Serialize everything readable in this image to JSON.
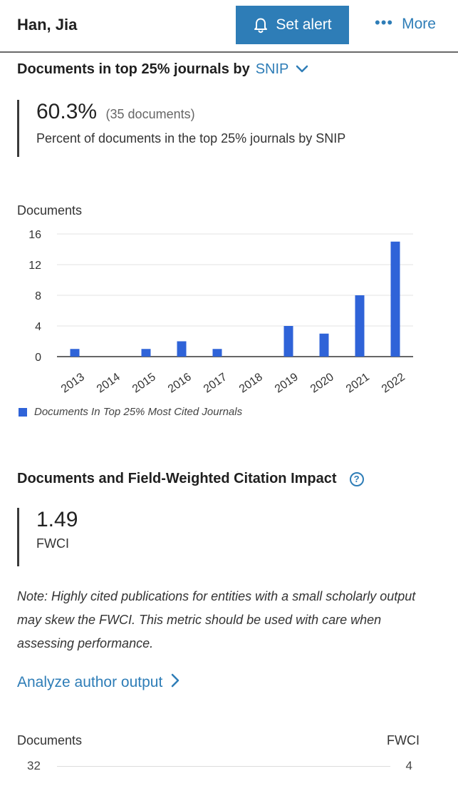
{
  "header": {
    "author_name": "Han, Jia",
    "set_alert_label": "Set alert",
    "more_label": "More"
  },
  "top_journals_section": {
    "title": "Documents in top 25% journals by",
    "selected_metric": "SNIP",
    "percent": "60.3%",
    "documents_count": "(35 documents)",
    "description": "Percent of documents in the top 25% journals by SNIP"
  },
  "chart_data": {
    "type": "bar",
    "title": "",
    "xlabel": "",
    "ylabel": "Documents",
    "categories": [
      "2013",
      "2014",
      "2015",
      "2016",
      "2017",
      "2018",
      "2019",
      "2020",
      "2021",
      "2022"
    ],
    "series": [
      {
        "name": "Documents In Top 25% Most Cited Journals",
        "values": [
          1,
          0,
          1,
          2,
          1,
          0,
          4,
          3,
          8,
          15
        ]
      }
    ],
    "yticks": [
      0,
      4,
      8,
      12,
      16
    ],
    "ylim": [
      0,
      16
    ],
    "grid": true,
    "legend_position": "bottom-left",
    "color": "#2f63d8"
  },
  "fwci_section": {
    "title": "Documents and Field-Weighted Citation Impact",
    "help_icon": "?",
    "value": "1.49",
    "label": "FWCI",
    "note": "Note: Highly cited publications for entities with a small scholarly output may skew the FWCI. This metric should be used with care when assessing performance.",
    "analyze_link_label": "Analyze author output",
    "bottom_chart": {
      "left_axis_label": "Documents",
      "right_axis_label": "FWCI",
      "left_top_tick": "32",
      "right_top_tick": "4"
    }
  },
  "colors": {
    "accent": "#2e7db7",
    "bar": "#2f63d8",
    "text": "#222222"
  },
  "icons": {
    "bell": "bell-icon",
    "more": "more-dots-icon",
    "dropdown": "chevron-down-icon",
    "help": "question-circle-icon",
    "link_arrow": "chevron-right-icon"
  }
}
